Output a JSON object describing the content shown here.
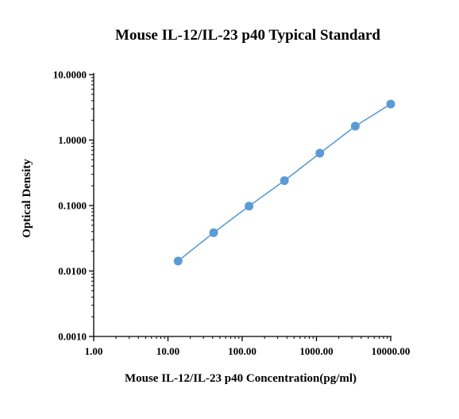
{
  "chart_data": {
    "type": "line",
    "title": "Mouse IL-12/IL-23 p40 Typical Standard",
    "xlabel": "Mouse IL-12/IL-23 p40  Concentration(pg/ml)",
    "ylabel": "Optical Density",
    "x_scale": "log",
    "y_scale": "log",
    "xlim": [
      1,
      10000
    ],
    "ylim": [
      0.001,
      10
    ],
    "x_ticks": [
      "1.00",
      "10.00",
      "100.00",
      "1000.00",
      "10000.00"
    ],
    "y_ticks": [
      "0.0010",
      "0.0100",
      "0.1000",
      "1.0000",
      "10.0000"
    ],
    "grid": false,
    "series": [
      {
        "x": [
          13.7,
          41.2,
          123.5,
          370.4,
          1111,
          3333,
          10000
        ],
        "y": [
          0.0142,
          0.0385,
          0.098,
          0.24,
          0.63,
          1.63,
          3.55
        ]
      }
    ],
    "colors": {
      "line": "#5b9bd5",
      "marker": "#5b9bd5",
      "axis": "#000000"
    }
  }
}
